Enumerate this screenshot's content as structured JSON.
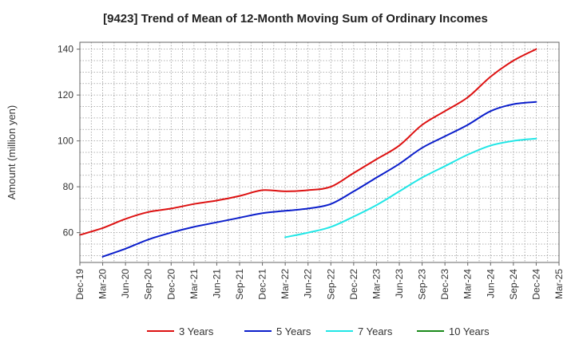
{
  "chart_data": {
    "type": "line",
    "title": "[9423]  Trend of Mean of 12-Month Moving Sum of Ordinary Incomes",
    "xlabel": "",
    "ylabel": "Amount (million yen)",
    "ylim": [
      47,
      143
    ],
    "yticks": [
      60,
      80,
      100,
      120,
      140
    ],
    "grid": true,
    "legend_position": "bottom",
    "categories": [
      "Dec-19",
      "Mar-20",
      "Jun-20",
      "Sep-20",
      "Dec-20",
      "Mar-21",
      "Jun-21",
      "Sep-21",
      "Dec-21",
      "Mar-22",
      "Jun-22",
      "Sep-22",
      "Dec-22",
      "Mar-23",
      "Jun-23",
      "Sep-23",
      "Dec-23",
      "Mar-24",
      "Jun-24",
      "Sep-24",
      "Dec-24",
      "Mar-25"
    ],
    "series": [
      {
        "name": "3 Years",
        "color": "#dd1111",
        "values": [
          59,
          62,
          66,
          69,
          70.5,
          72.5,
          74,
          76,
          78.5,
          78,
          78.5,
          80,
          86,
          92,
          98,
          107,
          113,
          119,
          128,
          135,
          140,
          null
        ]
      },
      {
        "name": "5 Years",
        "color": "#0b1ecb",
        "values": [
          null,
          49.5,
          53,
          57,
          60,
          62.5,
          64.5,
          66.5,
          68.5,
          69.5,
          70.5,
          72.5,
          78,
          84,
          90,
          97,
          102,
          107,
          113,
          116,
          117,
          null
        ]
      },
      {
        "name": "7 Years",
        "color": "#21e6e6",
        "values": [
          null,
          null,
          null,
          null,
          null,
          null,
          null,
          null,
          null,
          58,
          60,
          62.5,
          67,
          72,
          78,
          84,
          89,
          94,
          98,
          100,
          101,
          null
        ]
      },
      {
        "name": "10 Years",
        "color": "#1a8a1a",
        "values": [
          null,
          null,
          null,
          null,
          null,
          null,
          null,
          null,
          null,
          null,
          null,
          null,
          null,
          null,
          null,
          null,
          null,
          null,
          null,
          null,
          null,
          null
        ]
      }
    ]
  }
}
